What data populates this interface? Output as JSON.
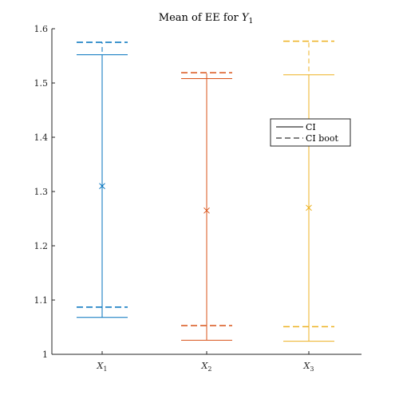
{
  "chart_data": {
    "type": "errorbar",
    "title": {
      "main": "Mean of EE for ",
      "var": "Y",
      "sub": "1"
    },
    "xlabel": "",
    "ylabel": "",
    "ylim": [
      1.0,
      1.6
    ],
    "yticks": [
      "1",
      "1.1",
      "1.2",
      "1.3",
      "1.4",
      "1.5",
      "1.6"
    ],
    "legend_placement": "right",
    "legend": [
      {
        "label": "CI",
        "style": "solid"
      },
      {
        "label": "CI boot",
        "style": "dashed"
      }
    ],
    "categories": [
      {
        "label": "X",
        "sub": "1"
      },
      {
        "label": "X",
        "sub": "2"
      },
      {
        "label": "X",
        "sub": "3"
      }
    ],
    "series": [
      {
        "mean": 1.31,
        "ci": [
          1.068,
          1.552
        ],
        "ci_boot": [
          1.087,
          1.575
        ],
        "color": "#0072BD"
      },
      {
        "mean": 1.265,
        "ci": [
          1.026,
          1.508
        ],
        "ci_boot": [
          1.053,
          1.519
        ],
        "color": "#D95319"
      },
      {
        "mean": 1.27,
        "ci": [
          1.024,
          1.515
        ],
        "ci_boot": [
          1.051,
          1.577
        ],
        "color": "#EDB120"
      }
    ]
  }
}
